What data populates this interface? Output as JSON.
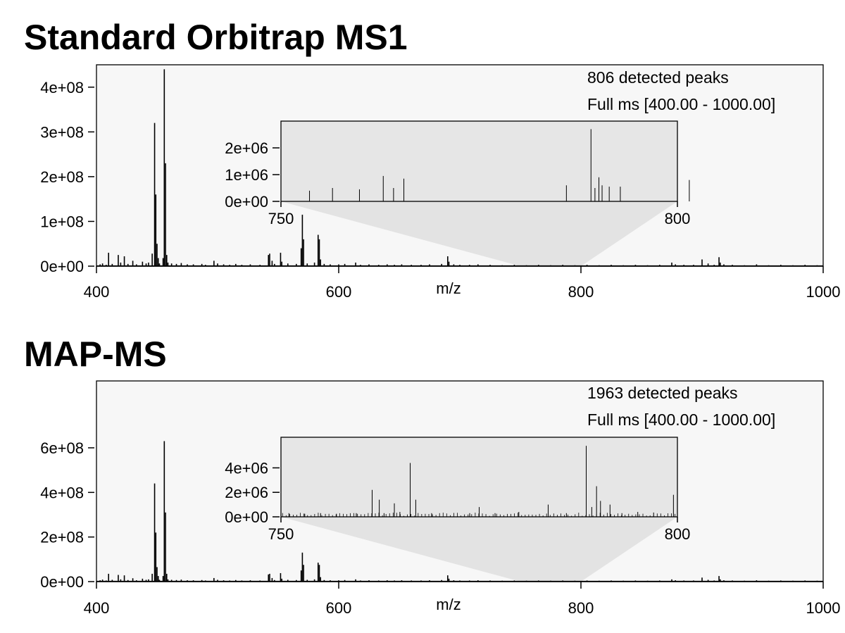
{
  "chart_data": [
    {
      "type": "line",
      "title": "Standard Orbitrap MS1",
      "xlabel": "m/z",
      "ylabel": "",
      "xlim": [
        400,
        1000
      ],
      "ylim": [
        0,
        450000000
      ],
      "x_ticks": [
        400,
        600,
        800,
        1000
      ],
      "y_ticks": [
        0,
        100000000,
        200000000,
        300000000,
        400000000
      ],
      "y_tick_labels": [
        "0e+00",
        "1e+08",
        "2e+08",
        "3e+08",
        "4e+08"
      ],
      "grid": false,
      "annotations": [
        "806 detected peaks",
        "Full ms [400.00 - 1000.00]"
      ],
      "peaks": {
        "mz": [
          403,
          405,
          408,
          410,
          413,
          418,
          420,
          423,
          426,
          430,
          433,
          438,
          441,
          443,
          446,
          448,
          449,
          450,
          451,
          452,
          455,
          456,
          457,
          458,
          459,
          462,
          466,
          470,
          475,
          480,
          487,
          490,
          497,
          500,
          505,
          510,
          515,
          520,
          527,
          535,
          542,
          543,
          545,
          547,
          552,
          553,
          558,
          565,
          569,
          570,
          571,
          574,
          580,
          583,
          584,
          585,
          588,
          593,
          600,
          605,
          614,
          618,
          625,
          633,
          640,
          646,
          652,
          660,
          668,
          675,
          685,
          690,
          691,
          695,
          700,
          708,
          715,
          725,
          735,
          745,
          755,
          765,
          775,
          785,
          795,
          805,
          815,
          825,
          835,
          845,
          855,
          865,
          875,
          878,
          885,
          893,
          900,
          905,
          910,
          914,
          915,
          918,
          925,
          935,
          945,
          955,
          965,
          975,
          985,
          995
        ],
        "intensity": [
          4000000,
          6000000,
          3000000,
          30000000,
          5000000,
          25000000,
          8000000,
          22000000,
          5000000,
          12000000,
          4000000,
          10000000,
          6000000,
          8000000,
          28000000,
          320000000,
          160000000,
          50000000,
          18000000,
          6000000,
          18000000,
          440000000,
          230000000,
          25000000,
          8000000,
          6000000,
          5000000,
          7000000,
          4000000,
          4000000,
          5000000,
          3000000,
          12000000,
          6000000,
          4000000,
          3000000,
          5000000,
          3000000,
          4000000,
          3000000,
          25000000,
          28000000,
          12000000,
          5000000,
          30000000,
          10000000,
          6000000,
          5000000,
          40000000,
          115000000,
          60000000,
          6000000,
          8000000,
          70000000,
          60000000,
          15000000,
          5000000,
          4000000,
          4000000,
          5000000,
          8000000,
          3000000,
          4000000,
          3000000,
          4000000,
          3000000,
          4000000,
          3000000,
          3000000,
          4000000,
          5000000,
          22000000,
          10000000,
          4000000,
          3000000,
          3000000,
          4000000,
          3000000,
          2000000,
          3000000,
          2000000,
          3000000,
          2000000,
          3000000,
          2000000,
          3000000,
          2000000,
          3000000,
          2000000,
          3000000,
          2000000,
          3000000,
          8000000,
          4000000,
          3000000,
          3000000,
          15000000,
          6000000,
          3000000,
          20000000,
          8000000,
          4000000,
          3000000,
          2000000,
          4000000,
          2000000,
          3000000,
          2000000,
          3000000,
          2000000
        ]
      },
      "inset": {
        "xlim": [
          750,
          800
        ],
        "ylim": [
          0,
          3000000
        ],
        "x_ticks": [
          750,
          800
        ],
        "y_ticks": [
          0,
          1000000,
          2000000
        ],
        "y_tick_labels": [
          "0e+00",
          "1e+06",
          "2e+06"
        ],
        "peaks": {
          "mz": [
            753.6,
            756.5,
            759.9,
            762.9,
            764.2,
            765.5,
            786.0,
            789.1,
            789.6,
            790.1,
            790.5,
            791.4,
            792.8,
            801.5
          ],
          "intensity": [
            400000,
            500000,
            450000,
            950000,
            500000,
            850000,
            600000,
            2700000,
            500000,
            900000,
            600000,
            550000,
            550000,
            800000
          ]
        }
      }
    },
    {
      "type": "line",
      "title": "MAP-MS",
      "xlabel": "m/z",
      "ylabel": "",
      "xlim": [
        400,
        1000
      ],
      "ylim": [
        0,
        900000000
      ],
      "x_ticks": [
        400,
        600,
        800,
        1000
      ],
      "y_ticks": [
        0,
        200000000,
        400000000,
        600000000
      ],
      "y_tick_labels": [
        "0e+00",
        "2e+08",
        "4e+08",
        "6e+08"
      ],
      "grid": false,
      "annotations": [
        "1963 detected peaks",
        "Full ms [400.00 - 1000.00]"
      ],
      "peaks": {
        "mz": [
          403,
          405,
          408,
          410,
          413,
          418,
          420,
          423,
          426,
          430,
          433,
          438,
          441,
          443,
          446,
          448,
          449,
          450,
          451,
          452,
          455,
          456,
          457,
          458,
          459,
          462,
          466,
          470,
          475,
          480,
          487,
          490,
          497,
          500,
          505,
          510,
          515,
          520,
          527,
          535,
          542,
          543,
          545,
          547,
          552,
          553,
          558,
          565,
          569,
          570,
          571,
          574,
          580,
          583,
          584,
          585,
          588,
          593,
          600,
          605,
          614,
          618,
          625,
          633,
          640,
          646,
          652,
          660,
          668,
          675,
          685,
          690,
          691,
          695,
          700,
          708,
          715,
          725,
          735,
          745,
          755,
          765,
          775,
          785,
          795,
          805,
          815,
          825,
          835,
          845,
          855,
          865,
          875,
          878,
          885,
          893,
          900,
          905,
          910,
          914,
          915,
          918,
          925,
          935,
          945,
          955,
          965,
          975,
          985,
          995
        ],
        "intensity": [
          6000000,
          9000000,
          5000000,
          35000000,
          8000000,
          30000000,
          10000000,
          28000000,
          7000000,
          15000000,
          6000000,
          13000000,
          8000000,
          10000000,
          35000000,
          440000000,
          220000000,
          65000000,
          25000000,
          8000000,
          25000000,
          630000000,
          310000000,
          35000000,
          10000000,
          8000000,
          7000000,
          9000000,
          6000000,
          6000000,
          7000000,
          5000000,
          16000000,
          8000000,
          6000000,
          5000000,
          7000000,
          5000000,
          6000000,
          5000000,
          32000000,
          35000000,
          16000000,
          7000000,
          38000000,
          13000000,
          8000000,
          7000000,
          50000000,
          130000000,
          75000000,
          8000000,
          10000000,
          85000000,
          75000000,
          20000000,
          7000000,
          6000000,
          6000000,
          7000000,
          10000000,
          5000000,
          6000000,
          5000000,
          6000000,
          5000000,
          6000000,
          5000000,
          5000000,
          6000000,
          7000000,
          28000000,
          13000000,
          6000000,
          5000000,
          5000000,
          6000000,
          5000000,
          4000000,
          5000000,
          4000000,
          5000000,
          4000000,
          5000000,
          4000000,
          5000000,
          4000000,
          5000000,
          4000000,
          5000000,
          4000000,
          5000000,
          10000000,
          6000000,
          5000000,
          5000000,
          18000000,
          8000000,
          5000000,
          25000000,
          10000000,
          6000000,
          5000000,
          4000000,
          6000000,
          4000000,
          5000000,
          4000000,
          5000000,
          4000000
        ]
      },
      "inset": {
        "xlim": [
          750,
          800
        ],
        "ylim": [
          0,
          6500000
        ],
        "x_ticks": [
          750,
          800
        ],
        "y_ticks": [
          0,
          2000000,
          4000000
        ],
        "y_tick_labels": [
          "0e+00",
          "2e+06",
          "4e+06"
        ],
        "peaks": {
          "mz": [
            751.0,
            753.0,
            755.0,
            757.0,
            759.5,
            761.5,
            762.4,
            763.0,
            764.3,
            765.0,
            766.3,
            767.0,
            769.0,
            773.8,
            775.0,
            777.0,
            780.0,
            783.7,
            786.0,
            788.5,
            789.2,
            789.8,
            790.3,
            791.5,
            793.0,
            795.0,
            797.0,
            799.5,
            800.0
          ],
          "intensity": [
            300000,
            250000,
            300000,
            250000,
            300000,
            2200000,
            1400000,
            300000,
            1100000,
            400000,
            4400000,
            1400000,
            300000,
            300000,
            800000,
            300000,
            400000,
            1000000,
            300000,
            5800000,
            800000,
            2500000,
            1300000,
            1000000,
            300000,
            400000,
            350000,
            1800000,
            700000
          ]
        }
      }
    }
  ]
}
